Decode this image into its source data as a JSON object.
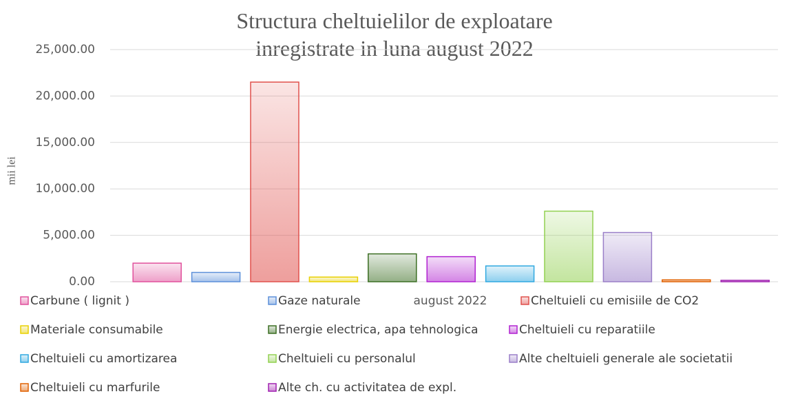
{
  "chart_data": {
    "type": "bar",
    "title": "Structura cheltuielilor de exploatare inregistrate in luna august 2022",
    "y_label": "mii lei",
    "categories": [
      "august 2022"
    ],
    "ylim": [
      0,
      25000
    ],
    "yticks": [
      {
        "value": 0,
        "label": "0.00"
      },
      {
        "value": 5000,
        "label": "5,000.00"
      },
      {
        "value": 10000,
        "label": "10,000.00"
      },
      {
        "value": 15000,
        "label": "15,000.00"
      },
      {
        "value": 20000,
        "label": "20,000.00"
      },
      {
        "value": 25000,
        "label": "25,000.00"
      }
    ],
    "grid": true,
    "legend": "bottom",
    "series": [
      {
        "name": "Carbune ( lignit )",
        "color": "#e0509c",
        "values": [
          2000
        ]
      },
      {
        "name": "Gaze naturale",
        "color": "#5b8fd9",
        "values": [
          1000
        ]
      },
      {
        "name": "Cheltuieli cu emisiile de CO2",
        "color": "#e0504c",
        "values": [
          21500
        ]
      },
      {
        "name": "Materiale consumabile",
        "color": "#e8d000",
        "values": [
          500
        ]
      },
      {
        "name": "Energie electrica, apa tehnologica",
        "color": "#3b6e22",
        "values": [
          3000
        ]
      },
      {
        "name": "Cheltuieli cu reparatiile",
        "color": "#b020d0",
        "values": [
          2700
        ]
      },
      {
        "name": "Cheltuieli cu amortizarea",
        "color": "#2fa8e0",
        "values": [
          1700
        ]
      },
      {
        "name": "Cheltuieli cu personalul",
        "color": "#92d050",
        "values": [
          7600
        ]
      },
      {
        "name": "Alte cheltuieli generale ale societatii",
        "color": "#9a7ec8",
        "values": [
          5300
        ]
      },
      {
        "name": "Cheltuieli cu marfurile",
        "color": "#e06000",
        "values": [
          200
        ]
      },
      {
        "name": "Alte ch. cu activitatea de expl.",
        "color": "#a020b0",
        "values": [
          150
        ]
      }
    ]
  }
}
